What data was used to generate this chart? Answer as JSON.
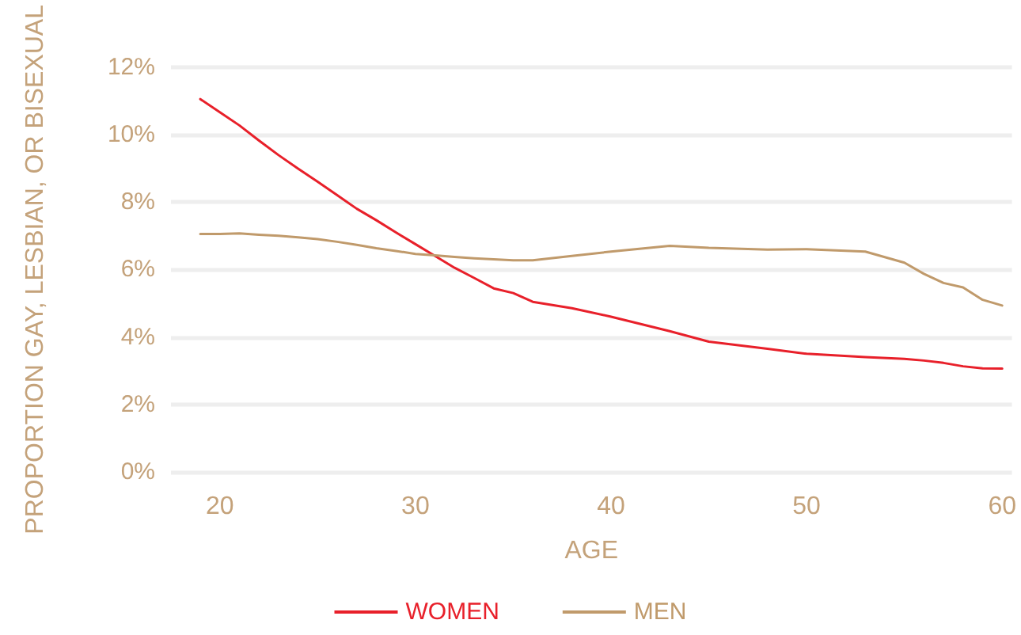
{
  "chart_data": {
    "type": "line",
    "xlabel": "AGE",
    "ylabel": "PROPORTION GAY, LESBIAN, OR BISEXUAL",
    "x": [
      19,
      20,
      21,
      22,
      23,
      24,
      25,
      26,
      27,
      28,
      29,
      30,
      31,
      32,
      33,
      34,
      35,
      36,
      38,
      40,
      43,
      45,
      48,
      50,
      53,
      55,
      56,
      57,
      58,
      59,
      60
    ],
    "series": [
      {
        "name": "WOMEN",
        "color": "#e8202a",
        "values": [
          11.05,
          10.66,
          10.27,
          9.82,
          9.39,
          8.99,
          8.6,
          8.2,
          7.8,
          7.46,
          7.1,
          6.75,
          6.4,
          6.05,
          5.75,
          5.44,
          5.3,
          5.04,
          4.85,
          4.6,
          4.17,
          3.86,
          3.65,
          3.5,
          3.4,
          3.35,
          3.3,
          3.23,
          3.13,
          3.07,
          3.06
        ]
      },
      {
        "name": "MEN",
        "color": "#c09a6b",
        "values": [
          7.05,
          7.05,
          7.07,
          7.03,
          7.0,
          6.95,
          6.9,
          6.82,
          6.73,
          6.63,
          6.55,
          6.46,
          6.42,
          6.37,
          6.33,
          6.3,
          6.27,
          6.27,
          6.4,
          6.53,
          6.7,
          6.64,
          6.59,
          6.6,
          6.53,
          6.2,
          5.87,
          5.6,
          5.47,
          5.1,
          4.93
        ]
      }
    ],
    "xlim": [
      17.5,
      60.5
    ],
    "xticks": [
      20,
      30,
      40,
      50,
      60
    ],
    "ylim": [
      0,
      12
    ],
    "yticks": [
      {
        "value": 0,
        "label": "0%"
      },
      {
        "value": 2,
        "label": "2%"
      },
      {
        "value": 4,
        "label": "4%"
      },
      {
        "value": 6,
        "label": "6%"
      },
      {
        "value": 8,
        "label": "8%"
      },
      {
        "value": 10,
        "label": "10%"
      },
      {
        "value": 12,
        "label": "12%"
      }
    ],
    "grid": "y",
    "legend": "bottom",
    "line_style": "solid"
  }
}
